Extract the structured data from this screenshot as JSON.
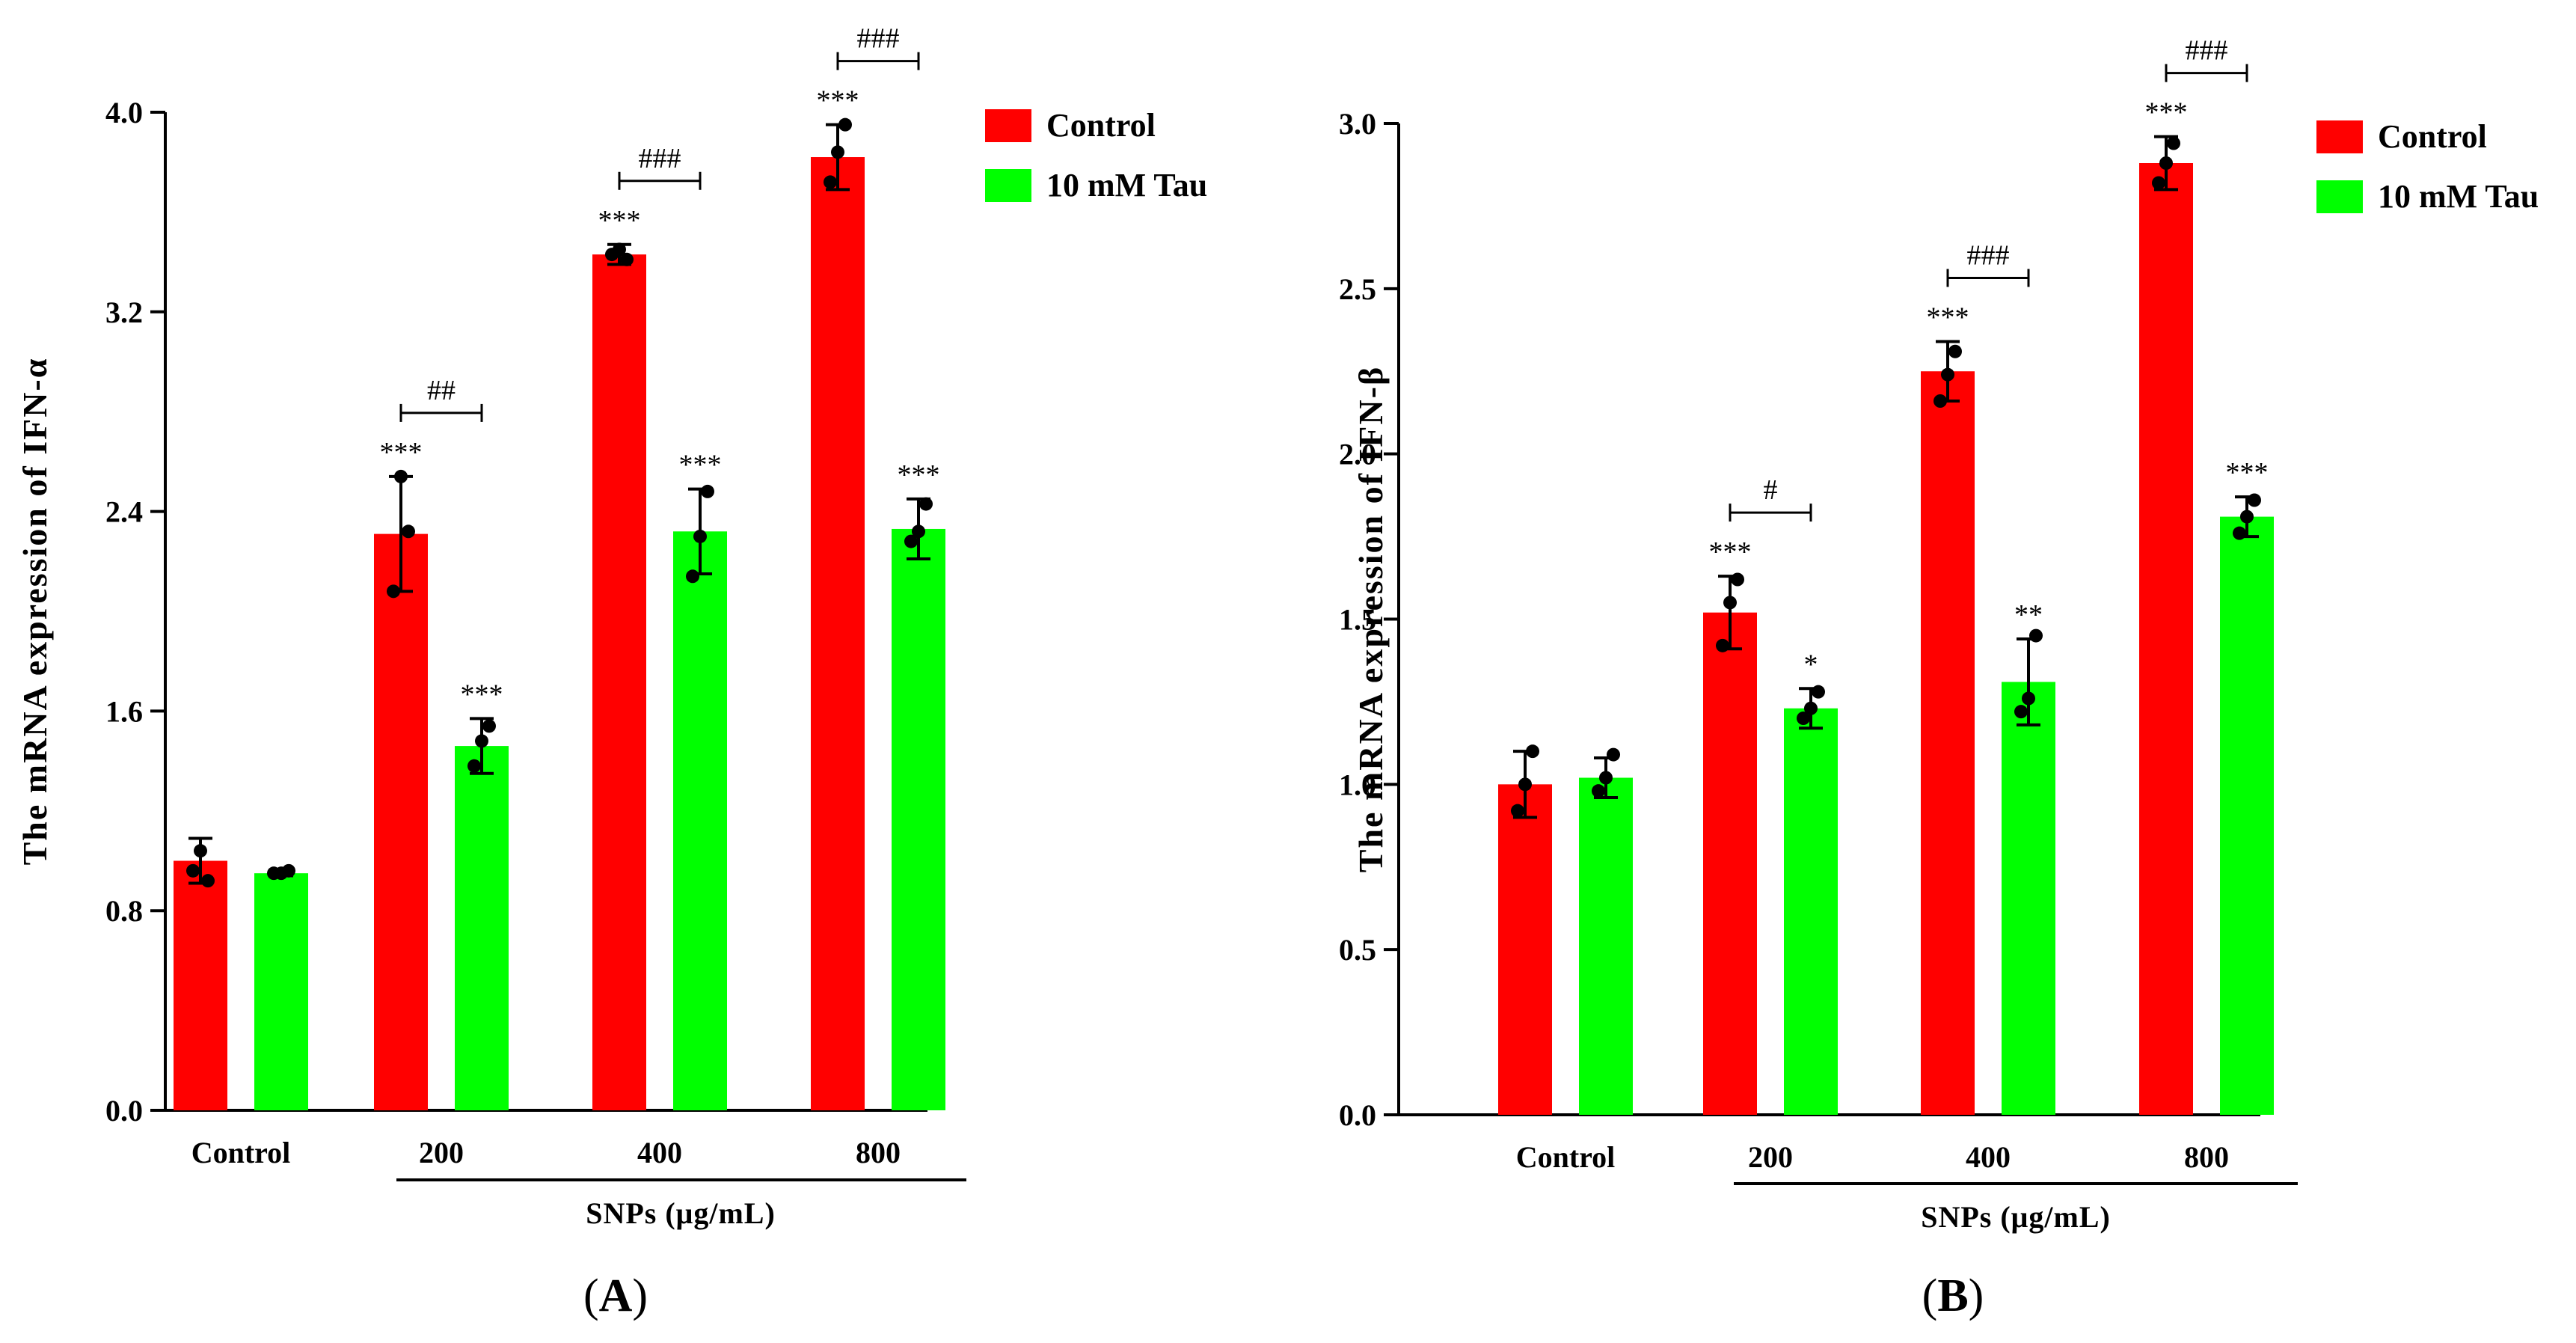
{
  "colors": {
    "control": "#ff0000",
    "tau": "#00ff00",
    "axis": "#000000"
  },
  "chart_data": [
    {
      "type": "bar",
      "panel_label": "A",
      "ylabel": "The mRNA expression of IFN-α",
      "ylim": [
        0.0,
        4.0
      ],
      "yticks": [
        "0.0",
        "0.8",
        "1.6",
        "2.4",
        "3.2",
        "4.0"
      ],
      "categories": [
        "Control",
        "200",
        "400",
        "800"
      ],
      "group_label": "SNPs (μg/mL)",
      "legend": [
        "Control",
        "10 mM Tau"
      ],
      "series": [
        {
          "name": "Control",
          "values": [
            1.0,
            2.31,
            3.43,
            3.82
          ],
          "errors": [
            0.09,
            0.23,
            0.04,
            0.13
          ],
          "points": [
            [
              0.96,
              1.04,
              0.92
            ],
            [
              2.08,
              2.54,
              2.32
            ],
            [
              3.43,
              3.45,
              3.41
            ],
            [
              3.72,
              3.84,
              3.95
            ]
          ]
        },
        {
          "name": "10 mM Tau",
          "values": [
            0.95,
            1.46,
            2.32,
            2.33
          ],
          "errors": [
            0.01,
            0.11,
            0.17,
            0.12
          ],
          "points": [
            [
              0.95,
              0.95,
              0.96
            ],
            [
              1.38,
              1.48,
              1.54
            ],
            [
              2.14,
              2.3,
              2.48
            ],
            [
              2.28,
              2.32,
              2.43
            ]
          ]
        }
      ],
      "significance": [
        [
          "",
          "***",
          "***",
          "***"
        ],
        [
          "",
          "***",
          "***",
          "***"
        ]
      ],
      "brackets": [
        "",
        "##",
        "###",
        "###"
      ]
    },
    {
      "type": "bar",
      "panel_label": "B",
      "ylabel": "The mRNA expression of IFN-β",
      "ylim": [
        0.0,
        3.0
      ],
      "yticks": [
        "0.0",
        "0.5",
        "1.0",
        "1.5",
        "2.0",
        "2.5",
        "3.0"
      ],
      "categories": [
        "Control",
        "200",
        "400",
        "800"
      ],
      "group_label": "SNPs (μg/mL)",
      "legend": [
        "Control",
        "10 mM Tau"
      ],
      "series": [
        {
          "name": "Control",
          "values": [
            1.0,
            1.52,
            2.25,
            2.88
          ],
          "errors": [
            0.1,
            0.11,
            0.09,
            0.08
          ],
          "points": [
            [
              0.92,
              1.0,
              1.1
            ],
            [
              1.42,
              1.55,
              1.62
            ],
            [
              2.16,
              2.24,
              2.31
            ],
            [
              2.82,
              2.88,
              2.94
            ]
          ]
        },
        {
          "name": "10 mM Tau",
          "values": [
            1.02,
            1.23,
            1.31,
            1.81
          ],
          "errors": [
            0.06,
            0.06,
            0.13,
            0.06
          ],
          "points": [
            [
              0.98,
              1.02,
              1.09
            ],
            [
              1.2,
              1.23,
              1.28
            ],
            [
              1.22,
              1.26,
              1.45
            ],
            [
              1.76,
              1.81,
              1.86
            ]
          ]
        }
      ],
      "significance": [
        [
          "",
          "***",
          "***",
          "***"
        ],
        [
          "",
          "*",
          "**",
          "***"
        ]
      ],
      "brackets": [
        "",
        "#",
        "###",
        "###"
      ]
    }
  ]
}
